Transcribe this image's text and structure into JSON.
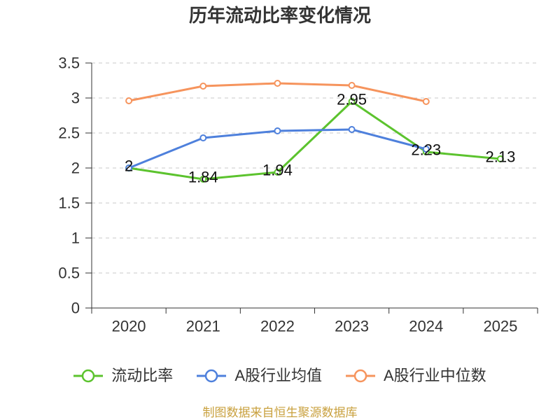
{
  "source": "制图数据来自恒生聚源数据库",
  "chart_data": {
    "type": "line",
    "title": "历年流动比率变化情况",
    "categories": [
      "2020",
      "2021",
      "2022",
      "2023",
      "2024",
      "2025"
    ],
    "ylim": [
      0,
      3.5
    ],
    "yticks": [
      0,
      0.5,
      1,
      1.5,
      2,
      2.5,
      3,
      3.5
    ],
    "grid": true,
    "legend_position": "bottom",
    "series": [
      {
        "name": "流动比率",
        "color": "#5cc32e",
        "values": [
          2,
          1.84,
          1.94,
          2.95,
          2.23,
          2.13
        ],
        "labels": [
          "2",
          "1.84",
          "1.94",
          "2.95",
          "2.23",
          "2.13"
        ]
      },
      {
        "name": "A股行业均值",
        "color": "#4e80dc",
        "values": [
          2.0,
          2.43,
          2.53,
          2.55,
          2.27,
          null
        ]
      },
      {
        "name": "A股行业中位数",
        "color": "#f6945d",
        "values": [
          2.96,
          3.17,
          3.21,
          3.18,
          2.95,
          null
        ]
      }
    ]
  }
}
